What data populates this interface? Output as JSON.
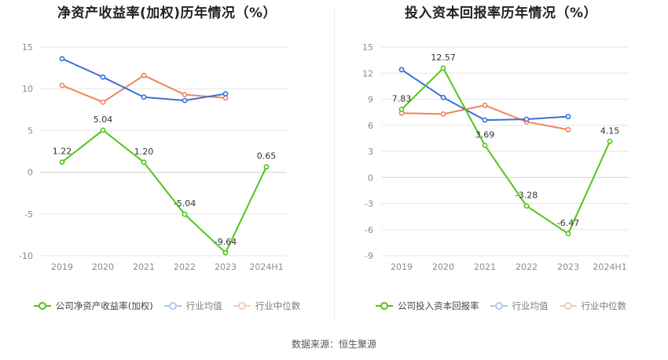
{
  "source": "数据来源：恒生聚源",
  "colors": {
    "company": "#52c41a",
    "avg": "#3a6fd8",
    "median": "#f0845c",
    "grid": "#e6e6e6"
  },
  "chart_data": [
    {
      "type": "line",
      "title": "净资产收益率(加权)历年情况（%）",
      "categories": [
        "2019",
        "2020",
        "2021",
        "2022",
        "2023",
        "2024H1"
      ],
      "ylim": [
        -10,
        15
      ],
      "yticks": [
        "15",
        "10",
        "5",
        "0",
        "-5",
        "-10"
      ],
      "ytick_values": [
        15,
        10,
        5,
        0,
        -5,
        -10
      ],
      "series": [
        {
          "name": "公司净资产收益率(加权)",
          "key": "company",
          "values": [
            1.22,
            5.04,
            1.2,
            -5.04,
            -9.64,
            0.65
          ],
          "labels": [
            "1.22",
            "5.04",
            "1.20",
            "-5.04",
            "-9.64",
            "0.65"
          ]
        },
        {
          "name": "行业均值",
          "key": "avg",
          "values": [
            13.6,
            11.4,
            9.0,
            8.6,
            9.4,
            null
          ]
        },
        {
          "name": "行业中位数",
          "key": "median",
          "values": [
            10.4,
            8.4,
            11.6,
            9.3,
            8.9,
            null
          ]
        }
      ]
    },
    {
      "type": "line",
      "title": "投入资本回报率历年情况（%）",
      "categories": [
        "2019",
        "2020",
        "2021",
        "2022",
        "2023",
        "2024H1"
      ],
      "ylim": [
        -9,
        15
      ],
      "yticks": [
        "15",
        "12",
        "9",
        "6",
        "3",
        "0",
        "-3",
        "-6",
        "-9"
      ],
      "ytick_values": [
        15,
        12,
        9,
        6,
        3,
        0,
        -3,
        -6,
        -9
      ],
      "series": [
        {
          "name": "公司投入资本回报率",
          "key": "company",
          "values": [
            7.83,
            12.57,
            3.69,
            -3.28,
            -6.47,
            4.15
          ],
          "labels": [
            "7.83",
            "12.57",
            "3.69",
            "-3.28",
            "-6.47",
            "4.15"
          ]
        },
        {
          "name": "行业均值",
          "key": "avg",
          "values": [
            12.4,
            9.2,
            6.6,
            6.7,
            7.0,
            null
          ]
        },
        {
          "name": "行业中位数",
          "key": "median",
          "values": [
            7.4,
            7.3,
            8.3,
            6.4,
            5.5,
            null
          ]
        }
      ]
    }
  ]
}
